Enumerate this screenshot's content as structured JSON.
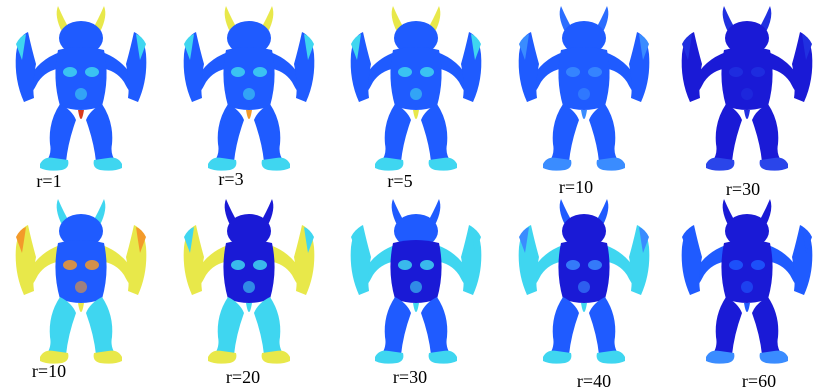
{
  "rows": [
    {
      "panels": [
        {
          "label": "r=1",
          "palette": "jet-mixed-1"
        },
        {
          "label": "r=3",
          "palette": "jet-mixed-2"
        },
        {
          "label": "r=5",
          "palette": "jet-mixed-3"
        },
        {
          "label": "r=10",
          "palette": "blue-light"
        },
        {
          "label": "r=30",
          "palette": "blue-dark"
        }
      ]
    },
    {
      "panels": [
        {
          "label": "r=10",
          "palette": "jet-high"
        },
        {
          "label": "r=20",
          "palette": "jet-mid"
        },
        {
          "label": "r=30",
          "palette": "jet-cyan"
        },
        {
          "label": "r=40",
          "palette": "blue-cyan"
        },
        {
          "label": "r=60",
          "palette": "blue-deep"
        }
      ]
    }
  ],
  "colors": {
    "dark-blue": "#1a1ad6",
    "blue": "#1f5bff",
    "cyan": "#3fd6f0",
    "yellow": "#e8e84a",
    "orange": "#f39a2a",
    "red": "#d83a1c"
  }
}
